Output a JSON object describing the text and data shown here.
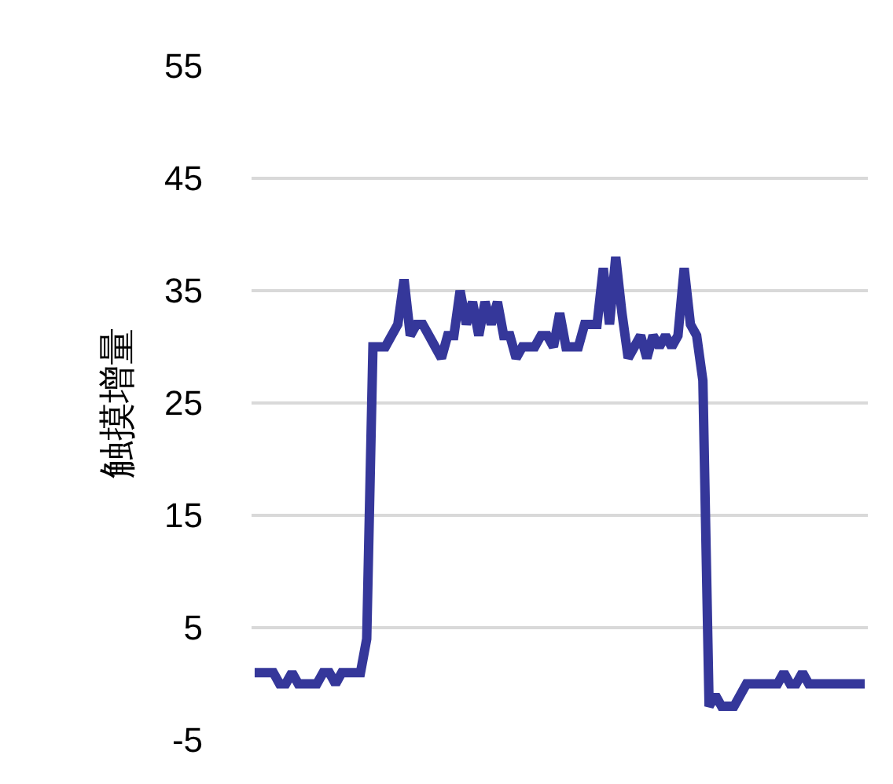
{
  "chart_data": {
    "type": "line",
    "ylabel": "触摸增量",
    "categories": [
      null,
      null,
      null,
      null,
      null,
      null,
      null,
      null,
      null,
      null,
      null,
      null,
      null,
      null,
      null,
      null,
      null,
      null,
      null,
      null,
      null,
      null,
      null,
      null,
      null,
      null,
      null,
      null,
      null,
      null,
      null,
      null,
      null,
      null,
      null,
      null,
      null,
      null,
      null,
      null,
      null,
      null,
      null,
      null,
      null,
      null,
      null,
      null,
      null,
      null,
      null,
      null,
      null,
      null,
      null,
      null,
      null,
      null,
      null,
      null,
      null,
      null,
      null,
      null,
      null,
      null,
      null,
      null,
      null,
      null,
      null,
      null,
      null,
      null,
      null,
      null,
      null,
      null,
      null,
      null,
      null,
      null,
      null,
      null,
      null,
      null,
      null,
      null,
      null,
      null,
      null,
      null,
      null,
      null,
      null,
      null,
      null,
      null,
      null
    ],
    "series": [
      {
        "color": "#35379a",
        "values": [
          1,
          1,
          1,
          1,
          0,
          0,
          1,
          0,
          0,
          0,
          0,
          1,
          1,
          0,
          1,
          1,
          1,
          1,
          4,
          30,
          30,
          30,
          31,
          32,
          36,
          31,
          32,
          32,
          31,
          30,
          29,
          31,
          31,
          35,
          32,
          34,
          31,
          34,
          32,
          34,
          31,
          31,
          29,
          30,
          30,
          30,
          31,
          31,
          30,
          33,
          30,
          30,
          30,
          32,
          32,
          32,
          37,
          32,
          38,
          33,
          29,
          30,
          31,
          29,
          31,
          30,
          31,
          30,
          31,
          37,
          32,
          31,
          27,
          -2,
          -1,
          -2,
          -2,
          -2,
          -1,
          0,
          0,
          0,
          0,
          0,
          0,
          1,
          0,
          0,
          1,
          0,
          0,
          0,
          0,
          0,
          0,
          0,
          0,
          0,
          0
        ]
      }
    ],
    "ylim": [
      -5,
      55
    ],
    "yticks": [
      -5,
      5,
      15,
      25,
      35,
      45,
      55
    ],
    "grid": "y",
    "legend": false,
    "tick_labels": "y",
    "marker": "none",
    "line_style": "solid"
  }
}
